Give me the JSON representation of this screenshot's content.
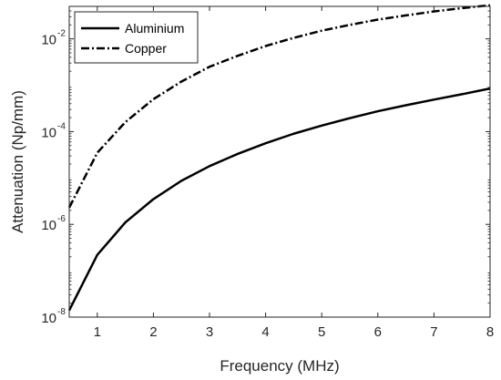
{
  "chart_data": {
    "type": "line",
    "title": "",
    "xlabel": "Frequency (MHz)",
    "ylabel": "Attenuation (Np/mm)",
    "xlim": [
      0.5,
      8
    ],
    "ylim_log10": [
      -8,
      -1.3
    ],
    "yscale": "log",
    "grid": false,
    "legend": "top-left",
    "x_ticks": [
      {
        "value": 1,
        "label": "1"
      },
      {
        "value": 2,
        "label": "2"
      },
      {
        "value": 3,
        "label": "3"
      },
      {
        "value": 4,
        "label": "4"
      },
      {
        "value": 5,
        "label": "5"
      },
      {
        "value": 6,
        "label": "6"
      },
      {
        "value": 7,
        "label": "7"
      },
      {
        "value": 8,
        "label": "8"
      }
    ],
    "y_ticks": [
      {
        "log10": -8,
        "base": "10",
        "exp": "-8"
      },
      {
        "log10": -6,
        "base": "10",
        "exp": "-6"
      },
      {
        "log10": -4,
        "base": "10",
        "exp": "-4"
      },
      {
        "log10": -2,
        "base": "10",
        "exp": "-2"
      }
    ],
    "x": [
      0.5,
      1,
      1.5,
      2,
      2.5,
      3,
      3.5,
      4,
      4.5,
      5,
      5.5,
      6,
      6.5,
      7,
      7.5,
      8
    ],
    "series": [
      {
        "name": "Aluminium",
        "style": "solid",
        "color": "#000000",
        "values": [
          1.4e-08,
          2.2e-07,
          1.1e-06,
          3.5e-06,
          8.7e-06,
          1.8e-05,
          3.3e-05,
          5.6e-05,
          9e-05,
          0.000135,
          0.000195,
          0.000275,
          0.00037,
          0.00049,
          0.00064,
          0.00085
        ]
      },
      {
        "name": "Copper",
        "style": "dashdot",
        "color": "#000000",
        "values": [
          2.3e-06,
          3.5e-05,
          0.00016,
          0.0005,
          0.0012,
          0.0025,
          0.0043,
          0.007,
          0.0105,
          0.015,
          0.02,
          0.026,
          0.032,
          0.039,
          0.046,
          0.053
        ]
      }
    ]
  }
}
